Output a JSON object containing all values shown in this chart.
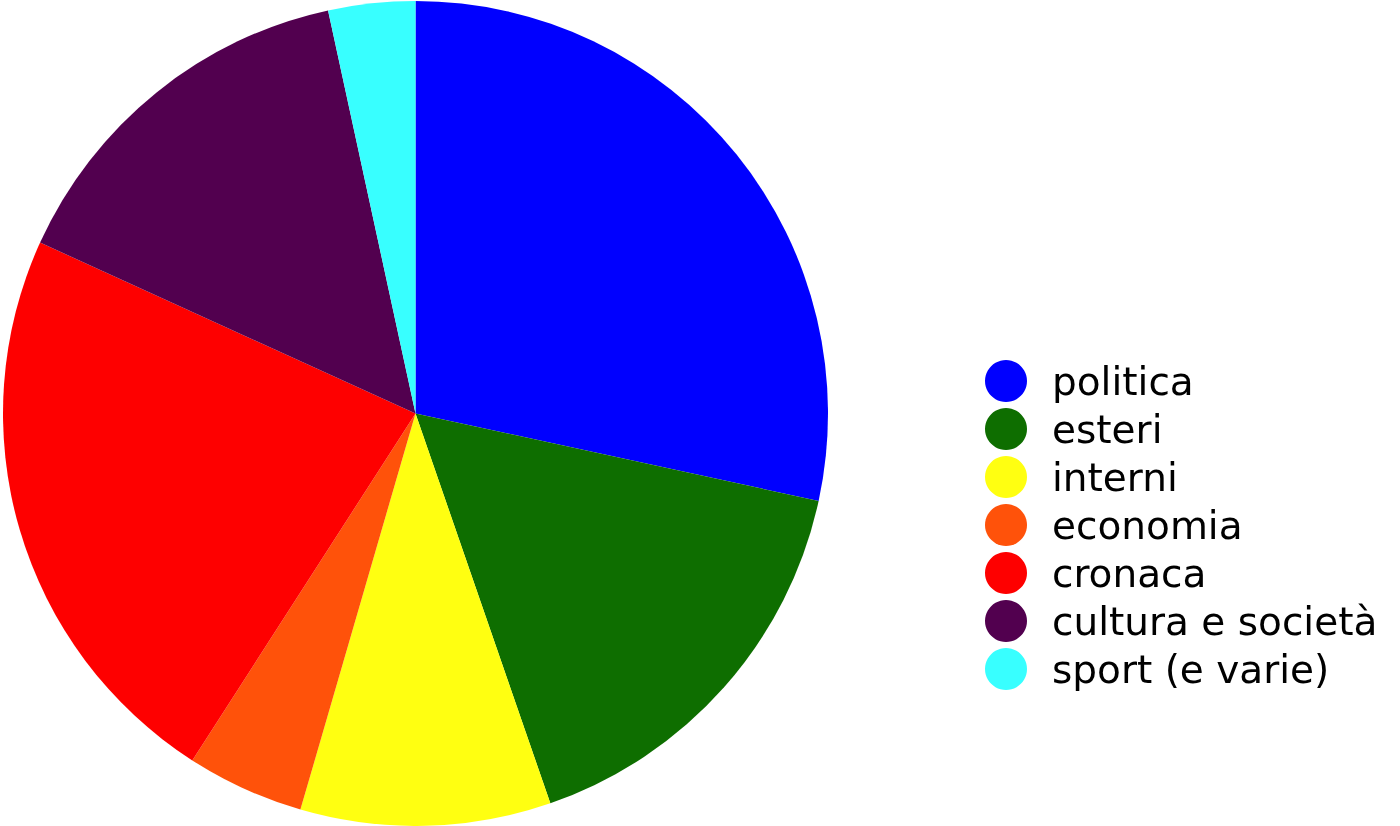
{
  "chart_data": {
    "type": "pie",
    "categories": [
      "politica",
      "esteri",
      "interni",
      "economia",
      "cronaca",
      "cultura e società",
      "sport (e varie)"
    ],
    "values": [
      28.4,
      16.3,
      9.8,
      4.6,
      22.7,
      14.8,
      3.4
    ],
    "colors": [
      "#0000ff",
      "#0e6e00",
      "#ffff11",
      "#ff520a",
      "#fe0000",
      "#52004f",
      "#38ffff"
    ],
    "legend": "right"
  }
}
